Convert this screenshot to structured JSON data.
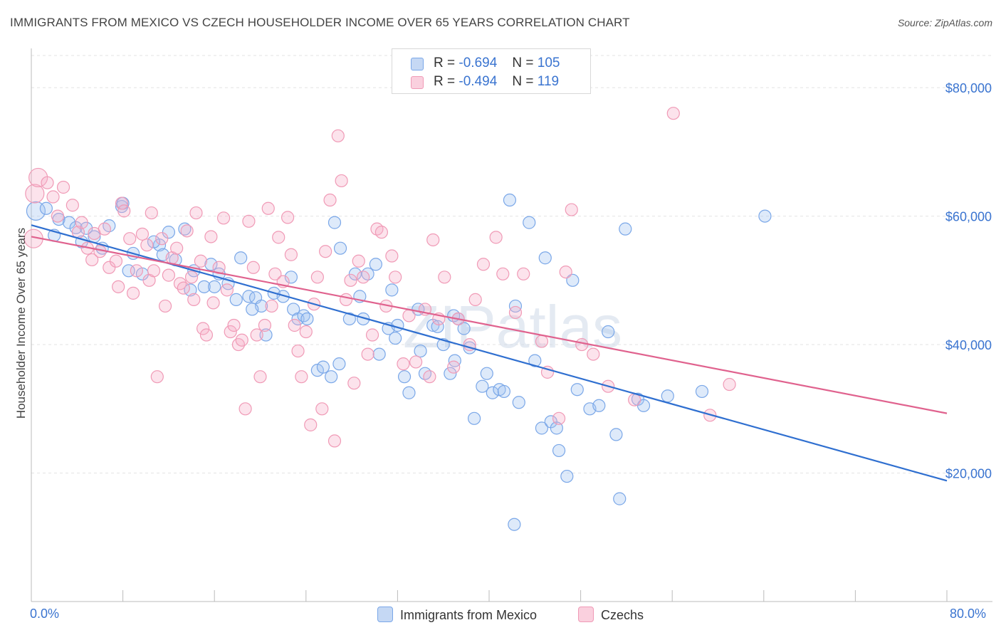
{
  "title": "IMMIGRANTS FROM MEXICO VS CZECH HOUSEHOLDER INCOME OVER 65 YEARS CORRELATION CHART",
  "source": "Source: ZipAtlas.com",
  "watermark": "ZIPatlas",
  "legend": {
    "rows": [
      {
        "name": "Immigrants from Mexico",
        "r_label": "R =",
        "r_value": "-0.694",
        "n_label": "N =",
        "n_value": "105",
        "color": "#7aa7e8"
      },
      {
        "name": "Czechs",
        "r_label": "R =",
        "r_value": "-0.494",
        "n_label": "N =",
        "n_value": "119",
        "color": "#f09ab6"
      }
    ]
  },
  "chart_data": {
    "type": "scatter",
    "xlabel": "",
    "ylabel": "Householder Income Over 65 years",
    "xlim": [
      0,
      80
    ],
    "ylim": [
      0,
      85000
    ],
    "x_tick_labels": {
      "min": "0.0%",
      "max": "80.0%"
    },
    "y_ticks": [
      {
        "value": 20000,
        "label": "$20,000"
      },
      {
        "value": 40000,
        "label": "$40,000"
      },
      {
        "value": 60000,
        "label": "$60,000"
      },
      {
        "value": 80000,
        "label": "$80,000"
      }
    ],
    "grid": true,
    "legend_position": "top-center",
    "series": [
      {
        "name": "Immigrants from Mexico",
        "color": "#7aa7e8",
        "line_color": "#2f6fd0",
        "trend": {
          "x": [
            0,
            80
          ],
          "y": [
            58600,
            18800
          ]
        },
        "points": [
          [
            0.4,
            60800
          ],
          [
            1.3,
            61200
          ],
          [
            2.0,
            57000
          ],
          [
            2.4,
            59500
          ],
          [
            3.3,
            59000
          ],
          [
            3.9,
            58200
          ],
          [
            4.8,
            58100
          ],
          [
            5.5,
            56800
          ],
          [
            6.8,
            58500
          ],
          [
            7.9,
            61500
          ],
          [
            6.2,
            55000
          ],
          [
            8.5,
            51500
          ],
          [
            8.9,
            54200
          ],
          [
            9.7,
            51000
          ],
          [
            11.2,
            55500
          ],
          [
            11.5,
            54000
          ],
          [
            12.0,
            57500
          ],
          [
            12.6,
            53200
          ],
          [
            13.9,
            48500
          ],
          [
            14.2,
            51500
          ],
          [
            15.1,
            49000
          ],
          [
            15.7,
            52500
          ],
          [
            16.4,
            51000
          ],
          [
            17.2,
            49500
          ],
          [
            17.9,
            47000
          ],
          [
            18.3,
            53500
          ],
          [
            19.0,
            47500
          ],
          [
            19.6,
            47300
          ],
          [
            20.1,
            46000
          ],
          [
            20.5,
            41500
          ],
          [
            21.2,
            48000
          ],
          [
            22.0,
            47500
          ],
          [
            22.7,
            50500
          ],
          [
            22.9,
            45500
          ],
          [
            23.3,
            44000
          ],
          [
            23.8,
            44500
          ],
          [
            25.0,
            36000
          ],
          [
            25.5,
            36500
          ],
          [
            26.2,
            35000
          ],
          [
            27.0,
            55000
          ],
          [
            26.5,
            59000
          ],
          [
            27.8,
            44000
          ],
          [
            28.3,
            51000
          ],
          [
            28.7,
            47500
          ],
          [
            29.4,
            51000
          ],
          [
            30.1,
            52500
          ],
          [
            30.4,
            38500
          ],
          [
            31.2,
            42500
          ],
          [
            31.5,
            48500
          ],
          [
            32.0,
            43000
          ],
          [
            32.6,
            35000
          ],
          [
            33.0,
            32500
          ],
          [
            33.8,
            45500
          ],
          [
            34.4,
            35500
          ],
          [
            35.1,
            43000
          ],
          [
            35.5,
            42800
          ],
          [
            36.0,
            40000
          ],
          [
            36.6,
            35500
          ],
          [
            37.0,
            37500
          ],
          [
            37.3,
            44000
          ],
          [
            37.8,
            42500
          ],
          [
            38.3,
            39500
          ],
          [
            38.7,
            28500
          ],
          [
            39.4,
            33500
          ],
          [
            39.8,
            35500
          ],
          [
            40.3,
            32500
          ],
          [
            40.9,
            33000
          ],
          [
            41.3,
            32700
          ],
          [
            41.8,
            62500
          ],
          [
            42.3,
            46000
          ],
          [
            42.6,
            31000
          ],
          [
            43.5,
            59000
          ],
          [
            44.0,
            37500
          ],
          [
            44.6,
            27000
          ],
          [
            44.9,
            53500
          ],
          [
            45.4,
            28000
          ],
          [
            45.9,
            27000
          ],
          [
            46.1,
            23500
          ],
          [
            46.8,
            19500
          ],
          [
            47.3,
            50000
          ],
          [
            47.7,
            33000
          ],
          [
            48.8,
            30000
          ],
          [
            49.6,
            30500
          ],
          [
            50.4,
            42000
          ],
          [
            51.1,
            26000
          ],
          [
            51.4,
            16000
          ],
          [
            51.9,
            58000
          ],
          [
            53.0,
            31500
          ],
          [
            53.5,
            30500
          ],
          [
            55.6,
            32000
          ],
          [
            58.6,
            32700
          ],
          [
            64.1,
            60000
          ],
          [
            42.2,
            12000
          ],
          [
            10.7,
            56000
          ],
          [
            16.0,
            49000
          ],
          [
            19.3,
            45500
          ],
          [
            24.1,
            44000
          ],
          [
            31.8,
            41000
          ],
          [
            29.0,
            44000
          ],
          [
            36.9,
            44500
          ],
          [
            13.4,
            58000
          ],
          [
            8.0,
            62000
          ],
          [
            4.4,
            56000
          ],
          [
            26.9,
            37000
          ],
          [
            34.0,
            39000
          ]
        ]
      },
      {
        "name": "Czechs",
        "color": "#f09ab6",
        "line_color": "#e0628e",
        "trend": {
          "x": [
            0,
            80
          ],
          "y": [
            56800,
            29300
          ]
        },
        "points": [
          [
            0.3,
            63500
          ],
          [
            0.6,
            66000
          ],
          [
            1.4,
            65200
          ],
          [
            2.3,
            60000
          ],
          [
            2.8,
            64500
          ],
          [
            3.6,
            61700
          ],
          [
            4.1,
            57500
          ],
          [
            4.4,
            59000
          ],
          [
            4.9,
            55000
          ],
          [
            5.5,
            57300
          ],
          [
            5.3,
            53200
          ],
          [
            6.0,
            54500
          ],
          [
            6.4,
            58000
          ],
          [
            6.8,
            52000
          ],
          [
            7.4,
            53000
          ],
          [
            7.6,
            49000
          ],
          [
            7.9,
            62000
          ],
          [
            8.1,
            60800
          ],
          [
            8.6,
            56500
          ],
          [
            8.9,
            48000
          ],
          [
            9.2,
            51500
          ],
          [
            9.7,
            57200
          ],
          [
            10.1,
            55500
          ],
          [
            10.3,
            50000
          ],
          [
            10.5,
            60500
          ],
          [
            10.7,
            51500
          ],
          [
            11.0,
            35000
          ],
          [
            11.4,
            56500
          ],
          [
            11.7,
            46000
          ],
          [
            12.0,
            50800
          ],
          [
            12.3,
            53500
          ],
          [
            12.7,
            55000
          ],
          [
            13.0,
            49500
          ],
          [
            13.3,
            48800
          ],
          [
            13.6,
            57700
          ],
          [
            14.0,
            50500
          ],
          [
            14.2,
            47000
          ],
          [
            14.4,
            60500
          ],
          [
            14.8,
            53000
          ],
          [
            15.0,
            42500
          ],
          [
            15.3,
            41500
          ],
          [
            15.7,
            56800
          ],
          [
            15.9,
            46500
          ],
          [
            16.4,
            52000
          ],
          [
            16.8,
            59700
          ],
          [
            17.1,
            48500
          ],
          [
            17.4,
            42000
          ],
          [
            17.7,
            43000
          ],
          [
            18.1,
            40000
          ],
          [
            18.4,
            40700
          ],
          [
            18.7,
            30000
          ],
          [
            19.0,
            59200
          ],
          [
            19.4,
            52000
          ],
          [
            19.7,
            41500
          ],
          [
            20.0,
            35000
          ],
          [
            20.4,
            43000
          ],
          [
            20.7,
            61200
          ],
          [
            21.0,
            46000
          ],
          [
            21.3,
            51000
          ],
          [
            21.6,
            56700
          ],
          [
            22.0,
            49800
          ],
          [
            22.4,
            59800
          ],
          [
            22.7,
            54000
          ],
          [
            23.0,
            43000
          ],
          [
            23.3,
            39000
          ],
          [
            23.6,
            35000
          ],
          [
            24.0,
            42000
          ],
          [
            24.4,
            27500
          ],
          [
            24.7,
            46300
          ],
          [
            25.0,
            50500
          ],
          [
            25.4,
            30000
          ],
          [
            25.7,
            54500
          ],
          [
            26.1,
            62500
          ],
          [
            26.5,
            25000
          ],
          [
            26.8,
            72500
          ],
          [
            27.1,
            65500
          ],
          [
            27.5,
            47000
          ],
          [
            27.9,
            50000
          ],
          [
            28.2,
            34000
          ],
          [
            28.6,
            53000
          ],
          [
            29.0,
            50500
          ],
          [
            29.4,
            38500
          ],
          [
            29.8,
            41500
          ],
          [
            30.2,
            58000
          ],
          [
            30.6,
            57500
          ],
          [
            31.0,
            46000
          ],
          [
            31.5,
            53800
          ],
          [
            31.8,
            50500
          ],
          [
            32.5,
            37000
          ],
          [
            33.0,
            44500
          ],
          [
            33.6,
            37300
          ],
          [
            34.4,
            45500
          ],
          [
            34.8,
            35000
          ],
          [
            35.1,
            56300
          ],
          [
            35.6,
            44000
          ],
          [
            36.1,
            50500
          ],
          [
            36.9,
            36500
          ],
          [
            37.3,
            44000
          ],
          [
            38.3,
            40000
          ],
          [
            38.8,
            47000
          ],
          [
            39.5,
            52500
          ],
          [
            40.6,
            56700
          ],
          [
            41.2,
            51000
          ],
          [
            42.3,
            45000
          ],
          [
            43.0,
            51000
          ],
          [
            44.6,
            40500
          ],
          [
            45.1,
            35700
          ],
          [
            46.1,
            28500
          ],
          [
            46.7,
            51300
          ],
          [
            47.2,
            61000
          ],
          [
            48.1,
            40000
          ],
          [
            49.1,
            38500
          ],
          [
            50.4,
            33500
          ],
          [
            52.7,
            31400
          ],
          [
            56.1,
            76000
          ],
          [
            59.3,
            29000
          ],
          [
            61.0,
            33800
          ],
          [
            0.2,
            56500
          ],
          [
            1.9,
            63000
          ]
        ]
      }
    ]
  }
}
